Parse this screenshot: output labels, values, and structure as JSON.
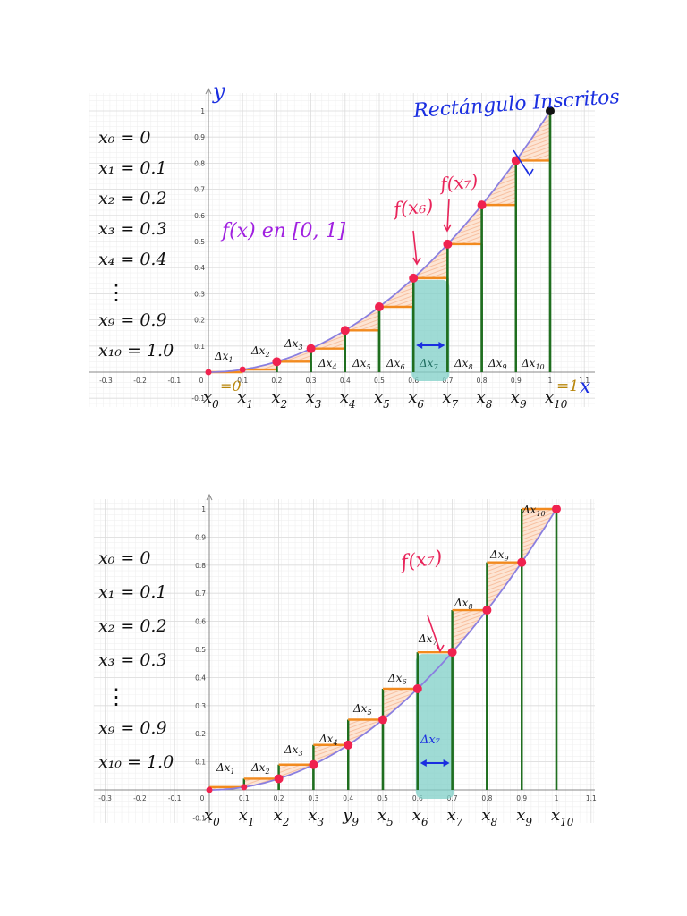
{
  "chart_data": [
    {
      "type": "line",
      "title": "Rectángulo Inscritos",
      "subtitle": "f(x) en [0,1]",
      "xlabel": "x",
      "ylabel": "y",
      "xlim": [
        -0.3,
        1.1
      ],
      "ylim": [
        -0.1,
        1.0
      ],
      "grid": true,
      "function": "x^2",
      "x": [
        0,
        0.1,
        0.2,
        0.3,
        0.4,
        0.5,
        0.6,
        0.7,
        0.8,
        0.9,
        1.0
      ],
      "y": [
        0,
        0.01,
        0.04,
        0.09,
        0.16,
        0.25,
        0.36,
        0.49,
        0.64,
        0.81,
        1.0
      ],
      "rectangles": "inscribed (left endpoint heights)",
      "rect_heights": [
        0,
        0.01,
        0.04,
        0.09,
        0.16,
        0.25,
        0.36,
        0.49,
        0.64,
        0.81
      ],
      "highlighted_interval": [
        0.6,
        0.7
      ],
      "xticks": [
        "-0.3",
        "-0.2",
        "-0.1",
        "0",
        "0.1",
        "0.2",
        "0.3",
        "0.4",
        "0.5",
        "0.6",
        "0.7",
        "0.8",
        "0.9",
        "1",
        "1.1"
      ],
      "yticks": [
        "-0.1",
        "0.1",
        "0.2",
        "0.3",
        "0.4",
        "0.5",
        "0.6",
        "0.7",
        "0.8",
        "0.9",
        "1"
      ],
      "point_labels": [
        "x0",
        "x1",
        "x2",
        "x3",
        "x4",
        "x5",
        "x6",
        "x7",
        "x8",
        "x9",
        "x10"
      ],
      "delta_labels": [
        "Δx1",
        "Δx2",
        "Δx3",
        "Δx4",
        "Δx5",
        "Δx6",
        "Δx7",
        "Δx8",
        "Δx9",
        "Δx10"
      ],
      "annotations": [
        "f(x6)",
        "f(x7)",
        "x0=0",
        "x10=1",
        "Rectángulo Inscritos"
      ]
    },
    {
      "type": "line",
      "title": "",
      "xlabel": "",
      "ylabel": "",
      "xlim": [
        -0.3,
        1.1
      ],
      "ylim": [
        -0.1,
        1.0
      ],
      "grid": true,
      "function": "x^2",
      "x": [
        0,
        0.1,
        0.2,
        0.3,
        0.4,
        0.5,
        0.6,
        0.7,
        0.8,
        0.9,
        1.0
      ],
      "y": [
        0,
        0.01,
        0.04,
        0.09,
        0.16,
        0.25,
        0.36,
        0.49,
        0.64,
        0.81,
        1.0
      ],
      "rectangles": "circumscribed (right endpoint heights)",
      "rect_heights": [
        0.01,
        0.04,
        0.09,
        0.16,
        0.25,
        0.36,
        0.49,
        0.64,
        0.81,
        1.0
      ],
      "highlighted_interval": [
        0.6,
        0.7
      ],
      "xticks": [
        "-0.3",
        "-0.2",
        "-0.1",
        "0",
        "0.1",
        "0.2",
        "0.3",
        "0.4",
        "0.5",
        "0.6",
        "0.7",
        "0.8",
        "0.9",
        "1",
        "1.1"
      ],
      "yticks": [
        "-0.1",
        "0.1",
        "0.2",
        "0.3",
        "0.4",
        "0.5",
        "0.6",
        "0.7",
        "0.8",
        "0.9",
        "1"
      ],
      "point_labels": [
        "x0",
        "x1",
        "x2",
        "x3",
        "y9",
        "x5",
        "x6",
        "x7",
        "x8",
        "x9",
        "x10"
      ],
      "delta_labels": [
        "Δx1",
        "Δx2",
        "Δx3",
        "Δx4",
        "Δx5",
        "Δx6",
        "Δx7",
        "Δx8",
        "Δx9",
        "Δx10"
      ],
      "annotations": [
        "f(x7)",
        "Δx7"
      ]
    }
  ],
  "panel1": {
    "equations": [
      "x₀ = 0",
      "x₁ = 0.1",
      "x₂ = 0.2",
      "x₃ = 0.3",
      "x₄ = 0.4",
      "⋮",
      "x₉ = 0.9",
      "x₁₀ = 1.0"
    ],
    "title": "Rectángulo Inscritos",
    "func_label": "f(x)  en  [0, 1]",
    "y_axis_label": "y",
    "x_axis_label": "x",
    "f_x6": "f(x₆)",
    "f_x7": "f(x₇)",
    "x0_eq": "=0",
    "x10_eq": "=1"
  },
  "panel2": {
    "equations": [
      "x₀ = 0",
      "x₁ = 0.1",
      "x₂ = 0.2",
      "x₃ = 0.3",
      "⋮",
      "x₉ = 0.9",
      "x₁₀ = 1.0"
    ],
    "f_x7": "f(x₇)",
    "dx7": "Δx₇"
  },
  "colors": {
    "curve": "#8a7fe0",
    "points": "#f0224f",
    "rect_sides": "#1f6e1f",
    "rect_top": "#f28a1e",
    "hatch": "#f7b996",
    "highlight": "#7fcfc7",
    "blue_ink": "#1a2ee0",
    "purple_ink": "#a020e0",
    "magenta_ink": "#e8245a",
    "gold_ink": "#b8860b"
  }
}
